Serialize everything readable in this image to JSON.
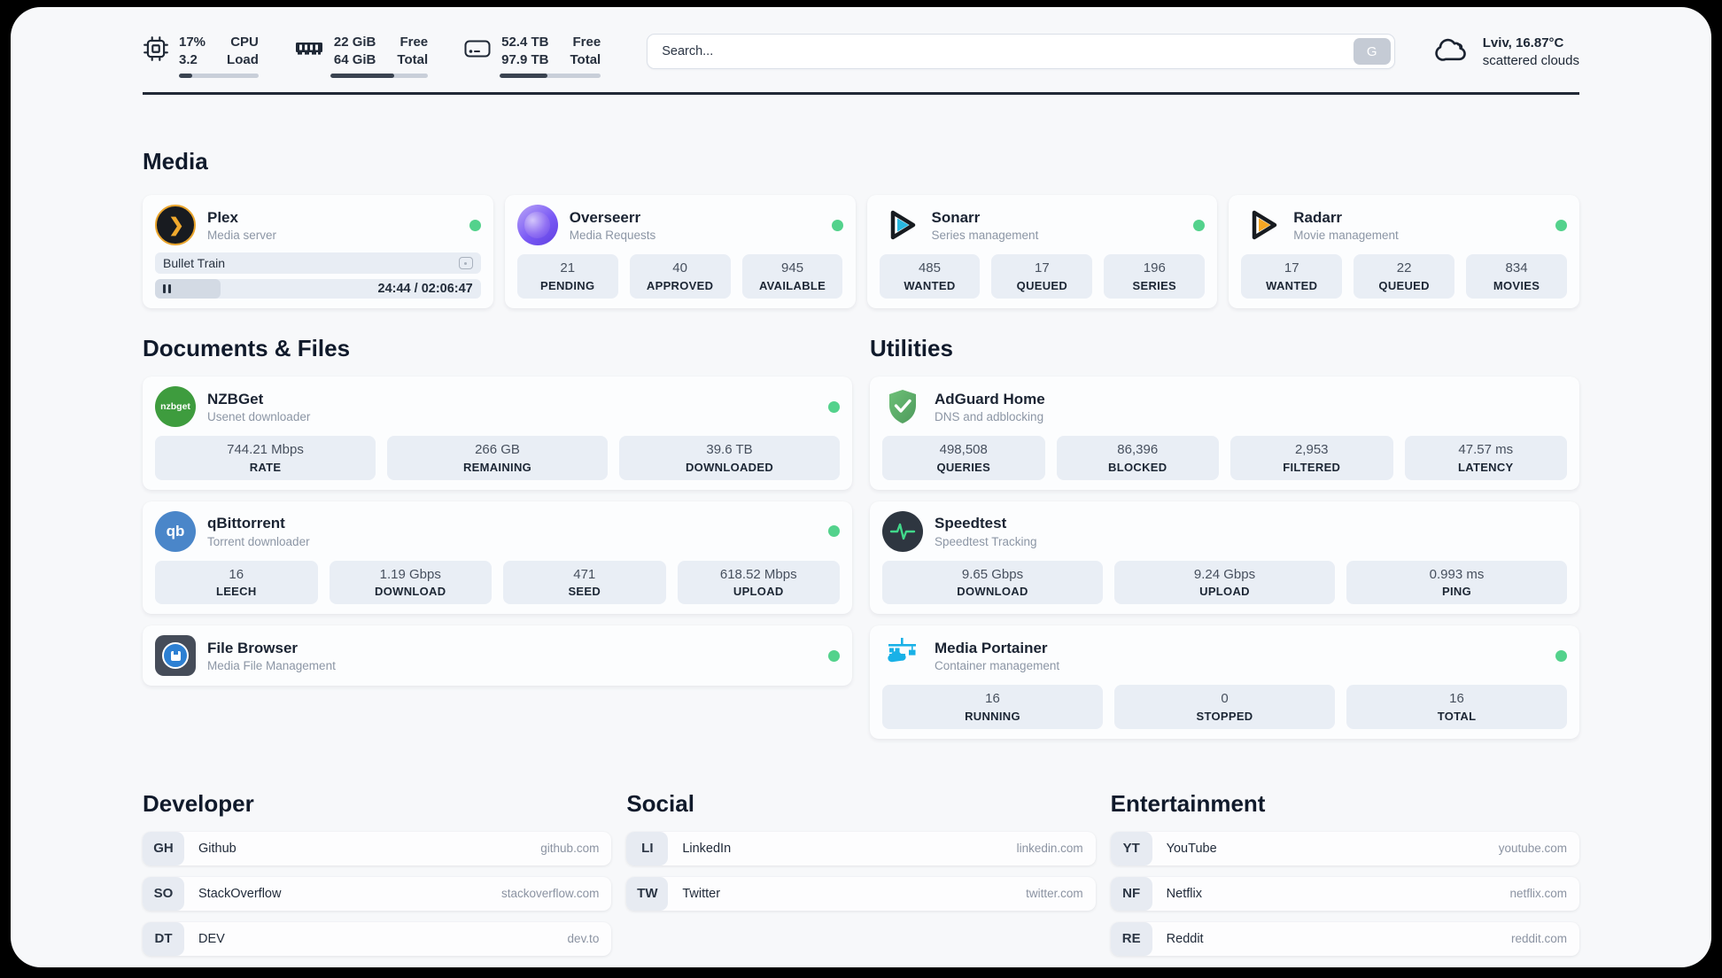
{
  "topbar": {
    "cpu": {
      "value_top": "17%",
      "value_bottom": "3.2",
      "label_top": "CPU",
      "label_bottom": "Load",
      "progress_pct": 17
    },
    "memory": {
      "value_top": "22 GiB",
      "value_bottom": "64 GiB",
      "label_top": "Free",
      "label_bottom": "Total",
      "progress_pct": 65
    },
    "storage": {
      "value_top": "52.4 TB",
      "value_bottom": "97.9 TB",
      "label_top": "Free",
      "label_bottom": "Total",
      "progress_pct": 47
    },
    "search": {
      "placeholder": "Search...",
      "provider_label": "G"
    },
    "weather": {
      "line1": "Lviv, 16.87°C",
      "line2": "scattered clouds"
    }
  },
  "media": {
    "title": "Media",
    "plex": {
      "name": "Plex",
      "subtitle": "Media server",
      "now_playing": "Bullet Train",
      "time_display": "24:44 / 02:06:47",
      "progress_pct": 20
    },
    "overseerr": {
      "name": "Overseerr",
      "subtitle": "Media Requests",
      "stats": [
        {
          "value": "21",
          "label": "PENDING"
        },
        {
          "value": "40",
          "label": "APPROVED"
        },
        {
          "value": "945",
          "label": "AVAILABLE"
        }
      ]
    },
    "sonarr": {
      "name": "Sonarr",
      "subtitle": "Series management",
      "stats": [
        {
          "value": "485",
          "label": "WANTED"
        },
        {
          "value": "17",
          "label": "QUEUED"
        },
        {
          "value": "196",
          "label": "SERIES"
        }
      ]
    },
    "radarr": {
      "name": "Radarr",
      "subtitle": "Movie management",
      "stats": [
        {
          "value": "17",
          "label": "WANTED"
        },
        {
          "value": "22",
          "label": "QUEUED"
        },
        {
          "value": "834",
          "label": "MOVIES"
        }
      ]
    }
  },
  "documents": {
    "title": "Documents & Files",
    "nzbget": {
      "name": "NZBGet",
      "subtitle": "Usenet downloader",
      "logo_text": "nzbget",
      "stats": [
        {
          "value": "744.21 Mbps",
          "label": "RATE"
        },
        {
          "value": "266 GB",
          "label": "REMAINING"
        },
        {
          "value": "39.6 TB",
          "label": "DOWNLOADED"
        }
      ]
    },
    "qbittorrent": {
      "name": "qBittorrent",
      "subtitle": "Torrent downloader",
      "logo_text": "qb",
      "stats": [
        {
          "value": "16",
          "label": "LEECH"
        },
        {
          "value": "1.19 Gbps",
          "label": "DOWNLOAD"
        },
        {
          "value": "471",
          "label": "SEED"
        },
        {
          "value": "618.52 Mbps",
          "label": "UPLOAD"
        }
      ]
    },
    "filebrowser": {
      "name": "File Browser",
      "subtitle": "Media File Management"
    }
  },
  "utilities": {
    "title": "Utilities",
    "adguard": {
      "name": "AdGuard Home",
      "subtitle": "DNS and adblocking",
      "stats": [
        {
          "value": "498,508",
          "label": "QUERIES"
        },
        {
          "value": "86,396",
          "label": "BLOCKED"
        },
        {
          "value": "2,953",
          "label": "FILTERED"
        },
        {
          "value": "47.57 ms",
          "label": "LATENCY"
        }
      ]
    },
    "speedtest": {
      "name": "Speedtest",
      "subtitle": "Speedtest Tracking",
      "stats": [
        {
          "value": "9.65 Gbps",
          "label": "DOWNLOAD"
        },
        {
          "value": "9.24 Gbps",
          "label": "UPLOAD"
        },
        {
          "value": "0.993 ms",
          "label": "PING"
        }
      ]
    },
    "portainer": {
      "name": "Media Portainer",
      "subtitle": "Container management",
      "stats": [
        {
          "value": "16",
          "label": "RUNNING"
        },
        {
          "value": "0",
          "label": "STOPPED"
        },
        {
          "value": "16",
          "label": "TOTAL"
        }
      ]
    }
  },
  "developer": {
    "title": "Developer",
    "links": [
      {
        "abbr": "GH",
        "name": "Github",
        "url": "github.com"
      },
      {
        "abbr": "SO",
        "name": "StackOverflow",
        "url": "stackoverflow.com"
      },
      {
        "abbr": "DT",
        "name": "DEV",
        "url": "dev.to"
      }
    ]
  },
  "social": {
    "title": "Social",
    "links": [
      {
        "abbr": "LI",
        "name": "LinkedIn",
        "url": "linkedin.com"
      },
      {
        "abbr": "TW",
        "name": "Twitter",
        "url": "twitter.com"
      }
    ]
  },
  "entertainment": {
    "title": "Entertainment",
    "links": [
      {
        "abbr": "YT",
        "name": "YouTube",
        "url": "youtube.com"
      },
      {
        "abbr": "NF",
        "name": "Netflix",
        "url": "netflix.com"
      },
      {
        "abbr": "RE",
        "name": "Reddit",
        "url": "reddit.com"
      }
    ]
  },
  "colors": {
    "status_online": "#53d28c",
    "divider": "#212936",
    "tile_bg": "#e9eef5",
    "plex_gold": "#f0a92d",
    "sonarr_cyan": "#29b8e0",
    "radarr_amber": "#f5a623",
    "adguard_green": "#5cae68",
    "portainer_blue": "#19b1e7"
  }
}
